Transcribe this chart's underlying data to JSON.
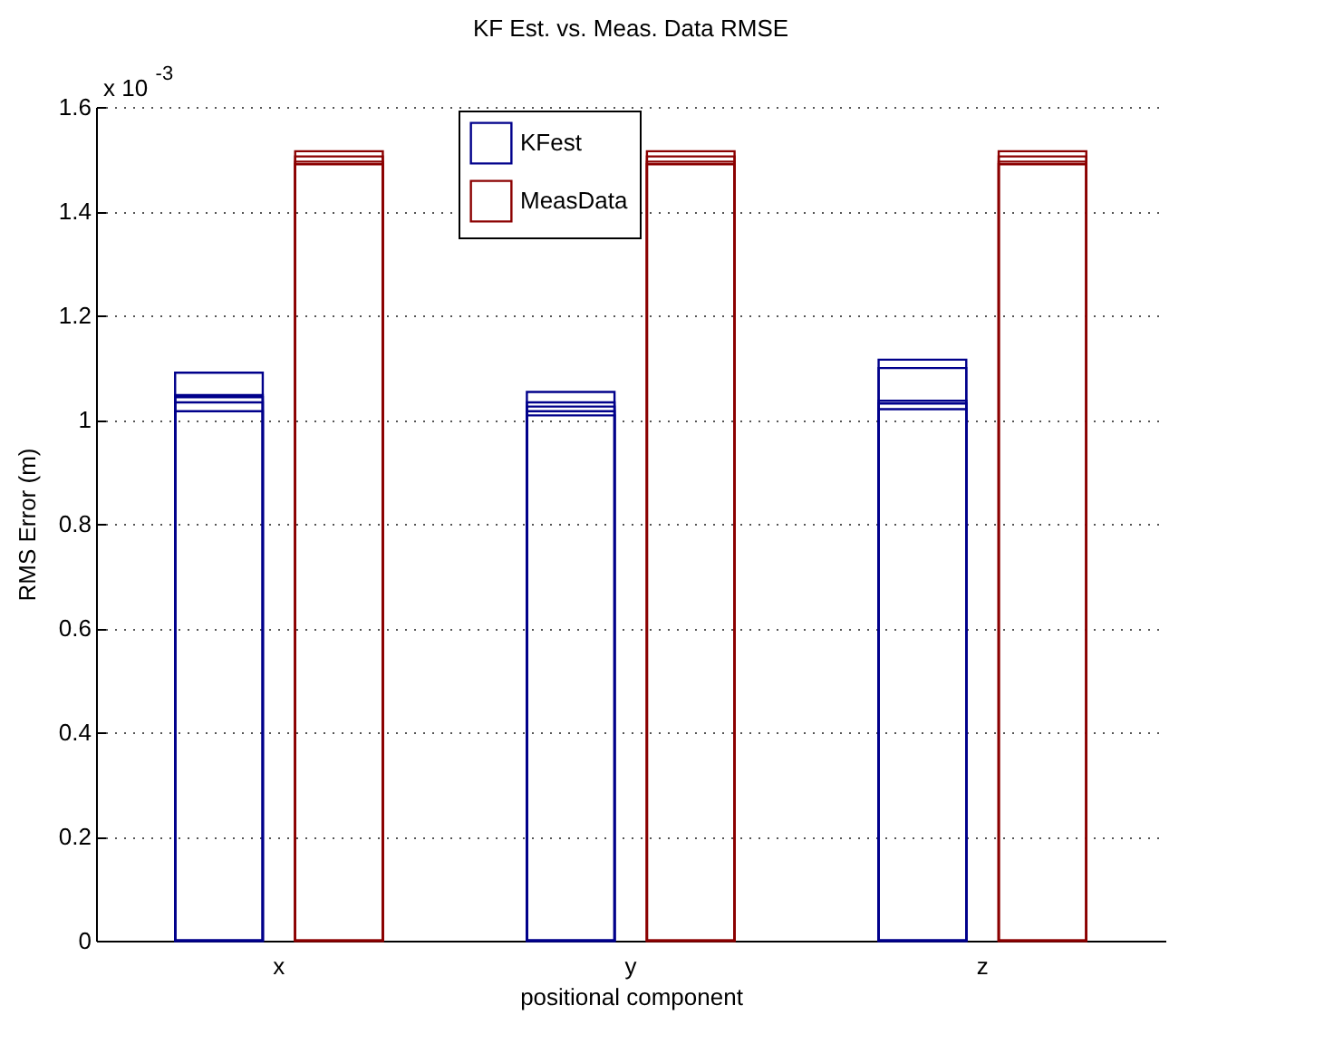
{
  "chart_data": {
    "type": "bar",
    "title": "KF Est. vs. Meas. Data RMSE",
    "xlabel": "positional component",
    "ylabel": "RMS Error (m)",
    "annotations": [
      "x 10$^{-3}$"
    ],
    "categories": [
      "x",
      "y",
      "z"
    ],
    "series": [
      {
        "name": "KFest",
        "color": "#00008b",
        "values": [
          1.09,
          1.053,
          1.115
        ]
      },
      {
        "color": "#00008b",
        "values": [
          1.047,
          1.033,
          1.099
        ]
      },
      {
        "color": "#00008b",
        "values": [
          1.043,
          1.025,
          1.036
        ]
      },
      {
        "color": "#00008b",
        "values": [
          1.033,
          1.016,
          1.031
        ]
      },
      {
        "color": "#00008b",
        "values": [
          1.016,
          1.008,
          1.02
        ]
      },
      {
        "name": "MeasData",
        "color": "#8b0000",
        "values": [
          1.515,
          1.515,
          1.515
        ]
      },
      {
        "color": "#8b0000",
        "values": [
          1.505,
          1.505,
          1.505
        ]
      },
      {
        "color": "#8b0000",
        "values": [
          1.495,
          1.495,
          1.495
        ]
      },
      {
        "color": "#8b0000",
        "values": [
          1.49,
          1.49,
          1.49
        ]
      }
    ],
    "ylim": [
      0,
      1.6
    ],
    "yticks": [
      0,
      0.2,
      0.4,
      0.6,
      0.8,
      1,
      1.2,
      1.4,
      1.6
    ],
    "grid": "y",
    "legend": "top"
  }
}
